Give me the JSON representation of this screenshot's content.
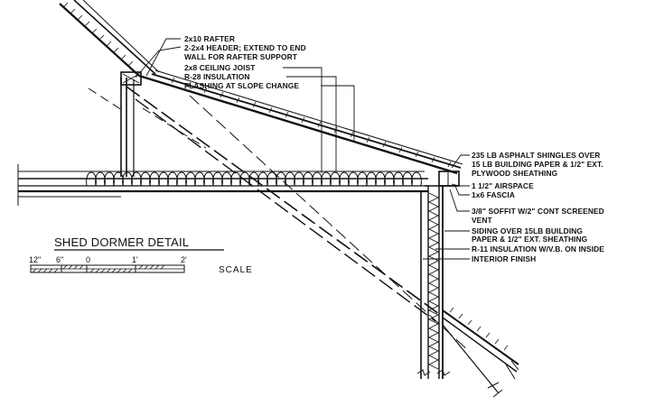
{
  "title": "SHED DORMER DETAIL",
  "scale": {
    "word": "SCALE",
    "ticks": [
      "12\"",
      "6\"",
      "0",
      "1'",
      "2'"
    ]
  },
  "callouts_top": {
    "rafter": "2x10 RAFTER",
    "header_1": "2-2x4 HEADER; EXTEND TO END",
    "header_2": "WALL FOR RAFTER SUPPORT",
    "ceiling_joist": "2x8 CEILING JOIST",
    "insulation": "R-28 INSULATION",
    "flashing": "FLASHING AT SLOPE CHANGE"
  },
  "callouts_right": {
    "shingles_1": "235 LB ASPHALT SHINGLES OVER",
    "shingles_2": "15 LB BUILDING PAPER & 1/2\" EXT.",
    "shingles_3": "PLYWOOD SHEATHING",
    "airspace": "1 1/2\" AIRSPACE",
    "fascia": "1x6 FASCIA",
    "soffit_1": "3/8\" SOFFIT W/2\" CONT SCREENED",
    "soffit_2": "VENT",
    "siding_1": "SIDING OVER 15LB BUILDING",
    "siding_2": "PAPER & 1/2\" EXT. SHEATHING",
    "wall_insulation": "R-11 INSULATION W/V.B. ON INSIDE",
    "interior": "INTERIOR FINISH"
  }
}
